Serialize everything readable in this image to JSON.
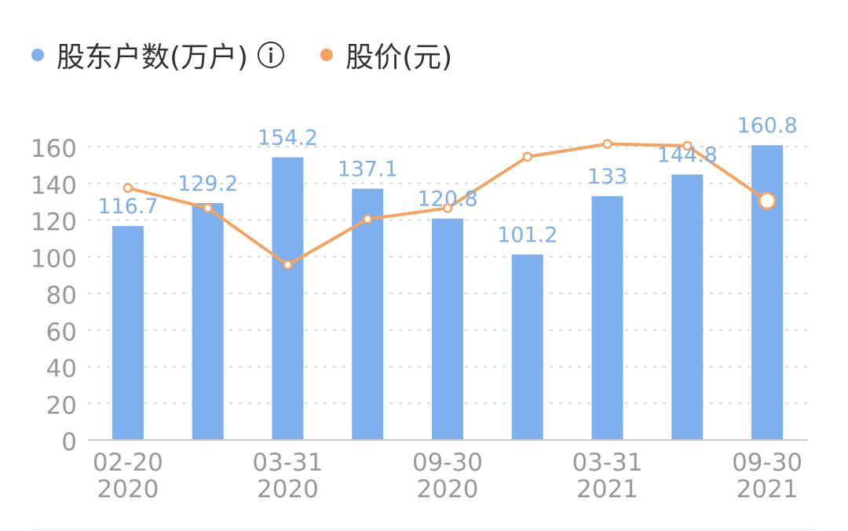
{
  "legend": {
    "bar_label": "股东户数(万户)",
    "line_label": "股价(元)"
  },
  "colors": {
    "bar": "#7eb0f0",
    "line": "#f3a462",
    "axis_text": "#999999",
    "bar_label_text": "#7eaee6",
    "grid": "#d9d9d9"
  },
  "icons": {
    "info": "info-circle-icon"
  },
  "chart_data": {
    "type": "bar",
    "x_tick_labels": [
      {
        "line1": "02-20",
        "line2": "2020"
      },
      {
        "line1": "03-31",
        "line2": "2020"
      },
      {
        "line1": "09-30",
        "line2": "2020"
      },
      {
        "line1": "03-31",
        "line2": "2021"
      },
      {
        "line1": "09-30",
        "line2": "2021"
      }
    ],
    "x_tick_index": [
      0,
      2,
      4,
      6,
      8
    ],
    "y_ticks": [
      "0",
      "20",
      "40",
      "60",
      "80",
      "100",
      "120",
      "140",
      "160"
    ],
    "ylim": [
      0,
      160
    ],
    "grid": true,
    "legend_position": "top-left",
    "series": [
      {
        "name": "股东户数(万户)",
        "type": "bar",
        "values": [
          116.7,
          129.2,
          154.2,
          137.1,
          120.8,
          101.2,
          133,
          144.8,
          160.8
        ],
        "labels": [
          "116.7",
          "129.2",
          "154.2",
          "137.1",
          "120.8",
          "101.2",
          "133",
          "144.8",
          "160.8"
        ]
      },
      {
        "name": "股价(元)",
        "type": "line",
        "values": [
          137.5,
          126.5,
          95.5,
          120.5,
          126.5,
          154.5,
          161.5,
          160.5,
          130.5
        ]
      }
    ]
  }
}
